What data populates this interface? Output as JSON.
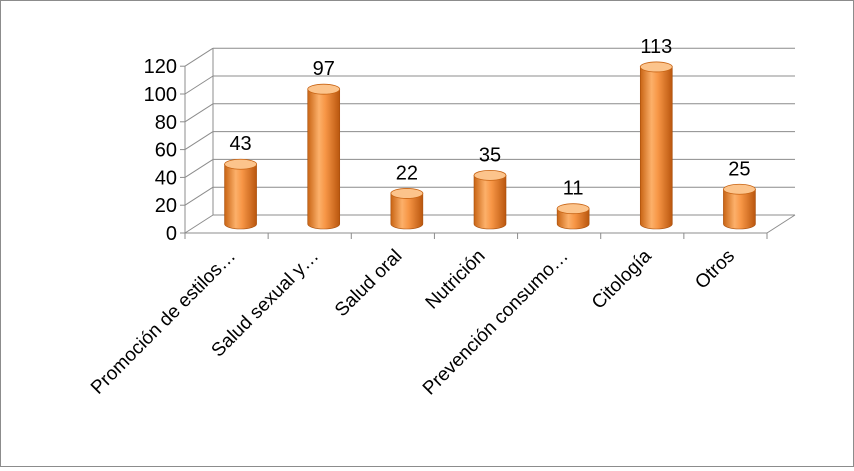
{
  "chart_data": {
    "type": "bar",
    "style": "3d-cylinder",
    "categories": [
      "Promoción de estilos…",
      "Salud sexual y…",
      "Salud oral",
      "Nutrición",
      "Prevención consumo…",
      "Citología",
      "Otros"
    ],
    "values": [
      43,
      97,
      22,
      35,
      11,
      113,
      25
    ],
    "data_labels": [
      "43",
      "97",
      "22",
      "35",
      "11",
      "113",
      "25"
    ],
    "ylim": [
      0,
      120
    ],
    "yticks": [
      0,
      20,
      40,
      60,
      80,
      100,
      120
    ],
    "ytick_labels": [
      "0",
      "20",
      "40",
      "60",
      "80",
      "100",
      "120"
    ],
    "title": "",
    "xlabel": "",
    "ylabel": "",
    "grid": true,
    "legend": "none",
    "colors": {
      "bar": "#f79646",
      "bar_light": "#fcc48c",
      "bar_dark": "#c86414",
      "grid": "#8c8c8c",
      "frame": "#8c8c8c",
      "text": "#000000"
    }
  }
}
